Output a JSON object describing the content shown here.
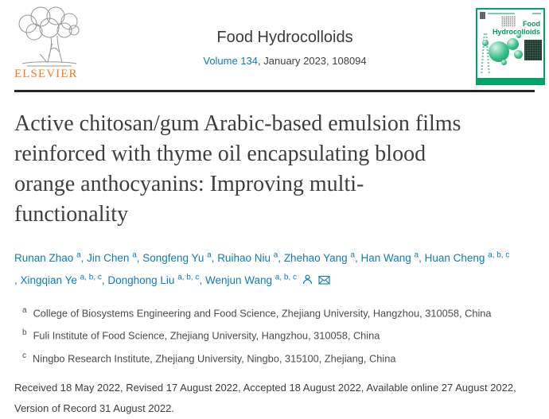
{
  "header": {
    "publisher_name": "ELSEVIER",
    "journal_title": "Food Hydrocolloids",
    "volume_link": "Volume 134",
    "volume_rest": ", January 2023, 108094",
    "cover": {
      "line1": "Food",
      "line2": "Hydrocolloids"
    }
  },
  "article": {
    "title_lines": [
      "Active chitosan/gum Arabic-based emulsion films",
      "reinforced with thyme oil encapsulating blood",
      "orange anthocyanins: Improving multi-",
      "functionality"
    ],
    "authors": [
      {
        "name": "Runan Zhao",
        "sup": "a"
      },
      {
        "name": "Jin Chen",
        "sup": "a"
      },
      {
        "name": "Songfeng Yu",
        "sup": "a"
      },
      {
        "name": "Ruihao Niu",
        "sup": "a"
      },
      {
        "name": "Zhehao Yang",
        "sup": "a"
      },
      {
        "name": "Han Wang",
        "sup": "a"
      },
      {
        "name": "Huan Cheng",
        "sup": "a, b, c"
      },
      {
        "name": "Xingqian Ye",
        "sup": "a, b, c",
        "break_before": true
      },
      {
        "name": "Donghong Liu",
        "sup": "a, b, c"
      },
      {
        "name": "Wenjun Wang",
        "sup": "a, b, c"
      }
    ],
    "author_icons": [
      "person-icon",
      "envelope-icon"
    ],
    "affiliations": [
      {
        "sup": "a",
        "text": "College of Biosystems Engineering and Food Science, Zhejiang University, Hangzhou, 310058, China"
      },
      {
        "sup": "b",
        "text": "Fuli Institute of Food Science, Zhejiang University, Hangzhou, 310058, China"
      },
      {
        "sup": "c",
        "text": "Ningbo Research Institute, Zhejiang University, Ningbo, 315100, Zhejiang, China"
      }
    ],
    "dates_lines": [
      "Received 18 May 2022, Revised 17 August 2022, Accepted 18 August 2022, Available online 27 August 2022,",
      "Version of Record 31 August 2022."
    ]
  },
  "colors": {
    "link_blue": "#0e7cb2",
    "elsevier_orange": "#f47b20",
    "cover_green": "#00a466",
    "divider_dark": "#262626",
    "title_gray": "#3e3e3e"
  }
}
